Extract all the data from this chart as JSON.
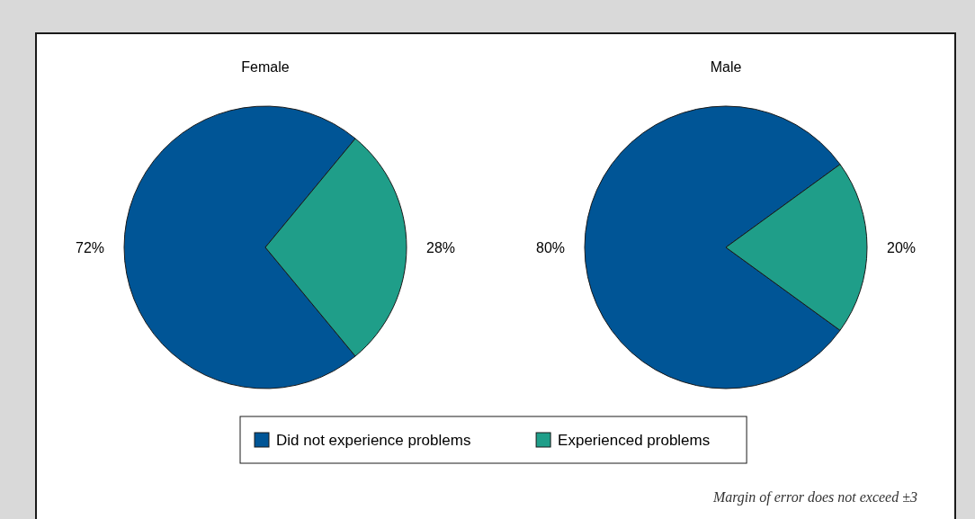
{
  "chart_data": [
    {
      "type": "pie",
      "title": "Female",
      "categories": [
        "Did not experience problems",
        "Experienced problems"
      ],
      "values": [
        72,
        28
      ],
      "colors": [
        "#005596",
        "#1f9e89"
      ],
      "value_labels": [
        "72%",
        "28%"
      ],
      "legend": "bottom"
    },
    {
      "type": "pie",
      "title": "Male",
      "categories": [
        null,
        null
      ],
      "values": [
        80,
        20
      ],
      "colors": [
        "#005596",
        "#1f9e89"
      ],
      "value_labels": [
        "80%",
        "20%"
      ],
      "annotations": [
        "Margin of error does not exceed ±3"
      ]
    }
  ]
}
